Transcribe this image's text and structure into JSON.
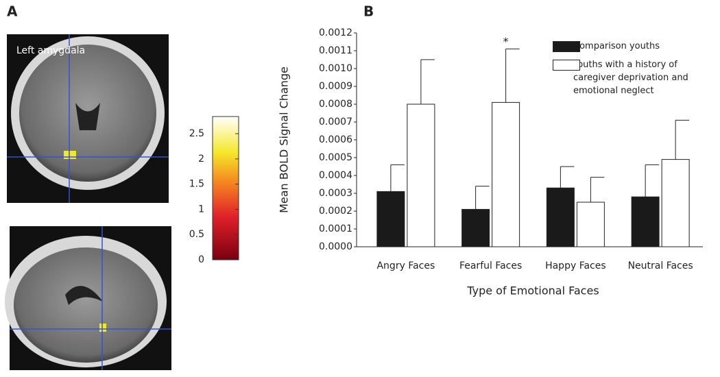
{
  "panel_a": {
    "label": "A",
    "image_label": "Left amygdala",
    "colorbar": {
      "lim": [
        0,
        2.84
      ],
      "ticks": [
        0,
        0.5,
        1,
        1.5,
        2,
        2.5
      ]
    }
  },
  "chart_data": {
    "type": "bar",
    "panel_label": "B",
    "x_label": "Type of Emotional Faces",
    "y_label": "Mean BOLD Signal Change",
    "annotation": "*",
    "categories": [
      "Angry Faces",
      "Fearful Faces",
      "Happy Faces",
      "Neutral Faces"
    ],
    "series": [
      {
        "name": "Comparison youths",
        "color": "#1a1a1a",
        "values": [
          0.00031,
          0.00021,
          0.00033,
          0.00028
        ],
        "errors": [
          0.00015,
          0.00013,
          0.00012,
          0.00018
        ]
      },
      {
        "name": "Youths with a history of caregiver deprivation and emotional neglect",
        "color": "#ffffff",
        "values": [
          0.0008,
          0.00081,
          0.00025,
          0.00049
        ],
        "errors": [
          0.00025,
          0.0003,
          0.00014,
          0.00022
        ]
      }
    ],
    "ylim": [
      0,
      0.0012
    ],
    "yticks": [
      {
        "value": 0,
        "label": "0.0000"
      },
      0.0001,
      0.0002,
      0.0003,
      0.0004,
      0.0005,
      0.0006,
      0.0007,
      0.0008,
      0.0009,
      {
        "value": 0.001,
        "label": "0.0010"
      },
      0.0011,
      0.0012
    ],
    "legend": "upper right"
  }
}
